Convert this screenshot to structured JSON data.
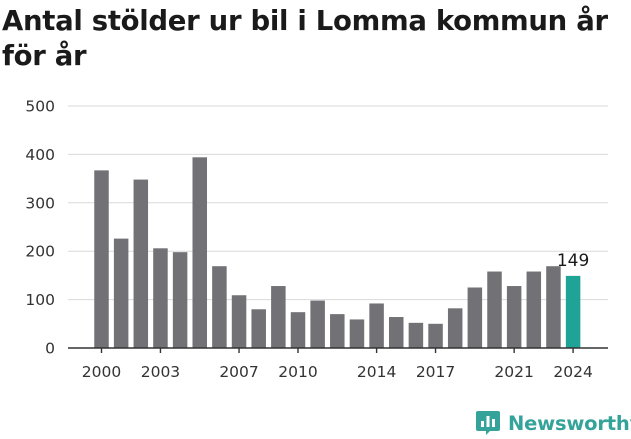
{
  "chart_data": {
    "type": "bar",
    "title": "Antal stölder ur bil i Lomma kommun år för år",
    "xlabel": "",
    "ylabel": "",
    "ylim": [
      0,
      500
    ],
    "yticks": [
      0,
      100,
      200,
      300,
      400,
      500
    ],
    "xtick_labels": [
      "2000",
      "2003",
      "2007",
      "2010",
      "2014",
      "2017",
      "2021",
      "2024"
    ],
    "categories": [
      "2000",
      "2001",
      "2002",
      "2003",
      "2004",
      "2005",
      "2006",
      "2007",
      "2008",
      "2009",
      "2010",
      "2011",
      "2012",
      "2013",
      "2014",
      "2015",
      "2016",
      "2017",
      "2018",
      "2019",
      "2020",
      "2021",
      "2022",
      "2023",
      "2024"
    ],
    "values": [
      367,
      226,
      348,
      206,
      198,
      394,
      169,
      109,
      80,
      128,
      74,
      98,
      70,
      59,
      92,
      64,
      52,
      50,
      82,
      125,
      158,
      128,
      158,
      169,
      149
    ],
    "highlight": {
      "category": "2024",
      "value": 149,
      "label": "149"
    },
    "colors": {
      "bar": "#727176",
      "highlight": "#1ea396",
      "grid": "#d9d9d9",
      "axis": "#333333"
    },
    "grid": true,
    "legend": "none"
  },
  "brand": {
    "name": "Newsworthy",
    "icon": "newsworthy-chart-icon",
    "color": "#35a39a"
  }
}
